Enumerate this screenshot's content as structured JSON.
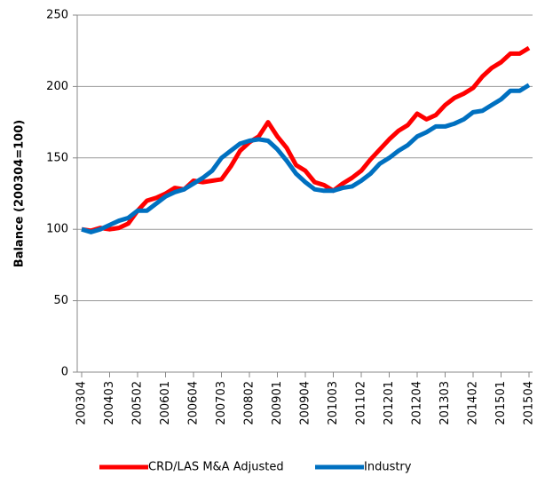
{
  "chart_data": {
    "type": "line",
    "y_label": "Balance (200304=100)",
    "categories": [
      "200304",
      null,
      null,
      "200403",
      null,
      null,
      "200502",
      null,
      null,
      "200601",
      null,
      null,
      "200604",
      null,
      null,
      "200703",
      null,
      null,
      "200802",
      null,
      null,
      "200901",
      null,
      null,
      "200904",
      null,
      null,
      "201003",
      null,
      null,
      "201102",
      null,
      null,
      "201201",
      null,
      null,
      "201204",
      null,
      null,
      "201303",
      null,
      null,
      "201402",
      null,
      null,
      "201501",
      null,
      null,
      "201504"
    ],
    "series": [
      {
        "name": "CRD/LAS M&A Adjusted",
        "color": "#ff0000",
        "values": [
          100,
          99,
          101,
          100,
          101,
          104,
          113,
          120,
          122,
          125,
          129,
          128,
          134,
          133,
          134,
          135,
          144,
          155,
          161,
          165,
          175,
          165,
          157,
          145,
          141,
          133,
          131,
          127,
          132,
          136,
          141,
          149,
          156,
          163,
          169,
          173,
          181,
          177,
          180,
          187,
          192,
          195,
          199,
          207,
          213,
          217,
          223,
          223,
          227
        ]
      },
      {
        "name": "Industry",
        "color": "#0070c0",
        "values": [
          100,
          98,
          100,
          103,
          106,
          108,
          113,
          113,
          118,
          123,
          126,
          128,
          132,
          136,
          141,
          150,
          155,
          160,
          162,
          163,
          162,
          156,
          148,
          139,
          133,
          128,
          127,
          127,
          129,
          130,
          134,
          139,
          146,
          150,
          155,
          159,
          165,
          168,
          172,
          172,
          174,
          177,
          182,
          183,
          187,
          191,
          197,
          197,
          201
        ]
      }
    ],
    "ylim": [
      0,
      250
    ],
    "yticks": [
      0,
      50,
      100,
      150,
      200,
      250
    ],
    "grid": true
  }
}
